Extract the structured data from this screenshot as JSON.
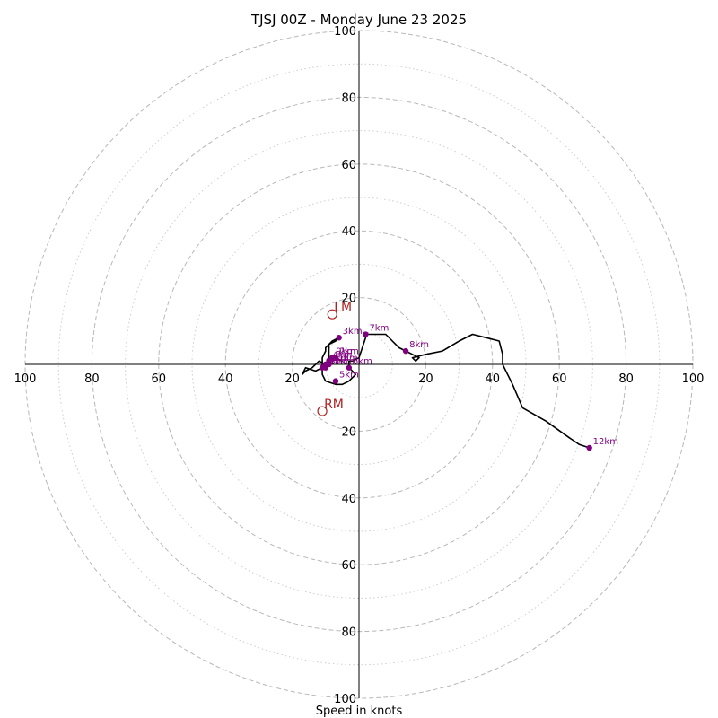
{
  "chart_data": {
    "type": "hodograph",
    "title": "TJSJ 00Z - Monday June 23 2025",
    "xlabel": "Speed in knots",
    "range": [
      -100,
      100
    ],
    "ring_major": [
      20,
      40,
      60,
      80,
      100
    ],
    "ring_minor": [
      10,
      30,
      50,
      70,
      90
    ],
    "axis_tick_labels": {
      "right": [
        "20",
        "40",
        "60",
        "80",
        "100"
      ],
      "left": [
        "20",
        "40",
        "60",
        "80",
        "100"
      ],
      "up": [
        "20",
        "40",
        "60",
        "80",
        "100"
      ],
      "down": [
        "20",
        "40",
        "60",
        "80",
        "100"
      ]
    },
    "hodograph_line_color": "#000000",
    "km_marker_color": "#800080",
    "storm_motion_color": "#b22222",
    "hodograph": [
      [
        -5,
        1
      ],
      [
        -8,
        2
      ],
      [
        -10,
        0
      ],
      [
        -12,
        1
      ],
      [
        -14,
        -1
      ],
      [
        -16,
        -2
      ],
      [
        -17,
        -3
      ],
      [
        -16,
        -1
      ],
      [
        -13,
        -2
      ],
      [
        -11,
        -1
      ],
      [
        -9,
        0
      ],
      [
        -9,
        1
      ],
      [
        -9,
        4
      ],
      [
        -9,
        6
      ],
      [
        -8,
        7
      ],
      [
        -6,
        8
      ],
      [
        -7,
        7
      ],
      [
        -9,
        6
      ],
      [
        -10,
        5
      ],
      [
        -10,
        4
      ],
      [
        -11,
        2
      ],
      [
        -11,
        1
      ],
      [
        -11,
        -1
      ],
      [
        -11,
        -3
      ],
      [
        -10,
        -5
      ],
      [
        -7,
        -6
      ],
      [
        -5,
        -6
      ],
      [
        -3,
        -5
      ],
      [
        -1,
        -3
      ],
      [
        -2,
        -2
      ],
      [
        -3,
        -1
      ],
      [
        -3,
        0
      ],
      [
        -3,
        1
      ],
      [
        -2,
        1
      ],
      [
        0,
        2
      ],
      [
        1,
        5
      ],
      [
        2,
        8
      ],
      [
        2,
        9
      ],
      [
        5,
        9
      ],
      [
        8,
        9
      ],
      [
        10,
        7
      ],
      [
        12,
        5
      ],
      [
        14,
        4
      ],
      [
        16,
        3
      ],
      [
        18,
        2
      ],
      [
        17,
        1
      ],
      [
        16,
        2
      ],
      [
        20,
        3
      ],
      [
        25,
        4
      ],
      [
        30,
        7
      ],
      [
        34,
        9
      ],
      [
        38,
        8
      ],
      [
        42,
        7
      ],
      [
        43,
        3
      ],
      [
        43,
        0
      ],
      [
        46,
        -6
      ],
      [
        49,
        -13
      ],
      [
        56,
        -17
      ],
      [
        63,
        -22
      ],
      [
        66,
        -24
      ],
      [
        69,
        -25
      ]
    ],
    "km_markers": [
      {
        "label": "0km",
        "u": -11,
        "v": -1
      },
      {
        "label": "1km",
        "u": -10,
        "v": 0
      },
      {
        "label": "2km",
        "u": -7,
        "v": 2
      },
      {
        "label": "3km",
        "u": -6,
        "v": 8
      },
      {
        "label": "4km",
        "u": -9,
        "v": 1
      },
      {
        "label": "5km",
        "u": -7,
        "v": -5
      },
      {
        "label": "6km",
        "u": -3,
        "v": -1
      },
      {
        "label": "7km",
        "u": 2,
        "v": 9
      },
      {
        "label": "8km",
        "u": 14,
        "v": 4
      },
      {
        "label": "9km",
        "u": -8,
        "v": 2
      },
      {
        "label": "10km",
        "u": -10,
        "v": -1
      },
      {
        "label": "11km",
        "u": -9,
        "v": 0
      },
      {
        "label": "12km",
        "u": 69,
        "v": -25
      }
    ],
    "storm_motion": [
      {
        "label": "LM",
        "u": -8,
        "v": 15
      },
      {
        "label": "RM",
        "u": -11,
        "v": -14
      }
    ]
  }
}
